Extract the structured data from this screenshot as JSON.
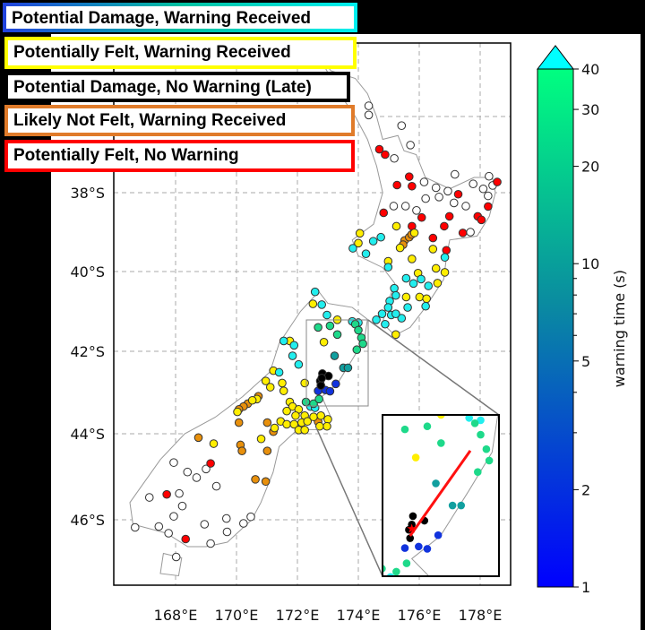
{
  "legend": [
    {
      "label": "Potential Damage, Warning Received",
      "border": "gradient"
    },
    {
      "label": "Potentially Felt, Warning Received",
      "border": "#ffff00"
    },
    {
      "label": "Potential Damage, No Warning (Late)",
      "border": "#000000"
    },
    {
      "label": "Likely Not Felt, Warning Received",
      "border": "#e07b2a"
    },
    {
      "label": "Potentially Felt, No Warning",
      "border": "#ff0000"
    }
  ],
  "map": {
    "lon_ticks": [
      "168°E",
      "170°E",
      "172°E",
      "174°E",
      "176°E",
      "178°E"
    ],
    "lat_ticks": [
      "38°S",
      "40°S",
      "42°S",
      "44°S",
      "46°S"
    ],
    "inset_rupture": [
      [
        173.82,
        -41.68
      ],
      [
        172.77,
        -42.8
      ]
    ],
    "inset_epicenter": [
      172.8,
      -42.7
    ],
    "groups": [
      {
        "category": "No Warning Needed",
        "fill": "#ffffff",
        "points": [
          [
            177.17,
            -37.52
          ],
          [
            178.29,
            -37.57
          ],
          [
            176.16,
            -37.72
          ],
          [
            176.55,
            -37.87
          ],
          [
            176.94,
            -37.96
          ],
          [
            177.77,
            -37.77
          ],
          [
            178.1,
            -37.9
          ],
          [
            178.41,
            -37.81
          ],
          [
            178.26,
            -38.08
          ],
          [
            176.21,
            -38.15
          ],
          [
            176.65,
            -38.11
          ],
          [
            177.14,
            -38.26
          ],
          [
            177.53,
            -38.34
          ],
          [
            175.16,
            -38.34
          ],
          [
            175.55,
            -38.34
          ],
          [
            175.91,
            -38.45
          ],
          [
            177.68,
            -39.0
          ],
          [
            174.34,
            -35.72
          ],
          [
            174.34,
            -35.96
          ],
          [
            175.42,
            -36.24
          ],
          [
            175.71,
            -36.75
          ],
          [
            175.18,
            -37.1
          ],
          [
            167.94,
            -44.67
          ],
          [
            168.39,
            -44.89
          ],
          [
            168.69,
            -45.02
          ],
          [
            169.0,
            -44.82
          ],
          [
            169.34,
            -45.22
          ],
          [
            168.12,
            -45.39
          ],
          [
            167.14,
            -45.48
          ],
          [
            168.22,
            -45.68
          ],
          [
            167.94,
            -45.92
          ],
          [
            166.67,
            -46.17
          ],
          [
            167.45,
            -46.15
          ],
          [
            167.77,
            -46.3
          ],
          [
            168.95,
            -46.1
          ],
          [
            169.67,
            -45.97
          ],
          [
            169.69,
            -46.27
          ],
          [
            170.23,
            -46.08
          ],
          [
            170.47,
            -45.93
          ],
          [
            169.15,
            -46.53
          ],
          [
            168.02,
            -46.83
          ]
        ]
      },
      {
        "category": "Potentially Felt, No Warning",
        "fill": "#ff0000",
        "points": [
          [
            175.67,
            -37.58
          ],
          [
            175.27,
            -37.8
          ],
          [
            175.76,
            -37.83
          ],
          [
            178.56,
            -37.72
          ],
          [
            177.28,
            -38.04
          ],
          [
            178.26,
            -38.35
          ],
          [
            174.83,
            -38.51
          ],
          [
            176.08,
            -38.63
          ],
          [
            176.99,
            -38.6
          ],
          [
            177.92,
            -38.6
          ],
          [
            178.04,
            -38.69
          ],
          [
            175.76,
            -38.85
          ],
          [
            176.82,
            -38.85
          ],
          [
            177.43,
            -39.02
          ],
          [
            176.45,
            -39.15
          ],
          [
            176.89,
            -39.46
          ],
          [
            174.69,
            -36.86
          ],
          [
            174.88,
            -37.0
          ],
          [
            169.15,
            -44.69
          ],
          [
            167.71,
            -45.41
          ],
          [
            168.33,
            -46.43
          ]
        ]
      },
      {
        "category": "Likely Not Felt, Warning Received",
        "fill": "#e8900c",
        "points": [
          [
            175.52,
            -39.21
          ],
          [
            175.67,
            -39.13
          ],
          [
            175.75,
            -39.06
          ],
          [
            175.47,
            -39.32
          ],
          [
            170.72,
            -43.09
          ],
          [
            170.37,
            -43.27
          ],
          [
            170.23,
            -43.34
          ],
          [
            170.08,
            -43.41
          ],
          [
            170.08,
            -43.73
          ],
          [
            171.01,
            -43.73
          ],
          [
            171.21,
            -43.95
          ],
          [
            168.75,
            -44.09
          ],
          [
            170.13,
            -44.26
          ],
          [
            170.18,
            -44.4
          ],
          [
            171.01,
            -44.4
          ],
          [
            170.62,
            -45.06
          ],
          [
            170.96,
            -45.11
          ],
          [
            172.68,
            -43.71
          ]
        ]
      },
      {
        "category": "Potentially Felt, Warning Received",
        "fill": "#ffee00",
        "points": [
          [
            174.05,
            -39.03
          ],
          [
            174.0,
            -39.28
          ],
          [
            175.25,
            -38.85
          ],
          [
            175.84,
            -39.02
          ],
          [
            175.37,
            -39.4
          ],
          [
            176.45,
            -39.43
          ],
          [
            175.76,
            -39.68
          ],
          [
            174.98,
            -39.74
          ],
          [
            175.96,
            -40.04
          ],
          [
            176.55,
            -39.92
          ],
          [
            176.84,
            -40.02
          ],
          [
            176.6,
            -40.29
          ],
          [
            175.57,
            -40.64
          ],
          [
            176.01,
            -40.64
          ],
          [
            176.24,
            -40.68
          ],
          [
            175.23,
            -41.58
          ],
          [
            172.51,
            -40.81
          ],
          [
            173.31,
            -41.21
          ],
          [
            172.87,
            -41.77
          ],
          [
            171.75,
            -41.74
          ],
          [
            171.21,
            -42.47
          ],
          [
            170.96,
            -42.72
          ],
          [
            171.5,
            -42.77
          ],
          [
            171.11,
            -42.87
          ],
          [
            171.55,
            -42.96
          ],
          [
            172.24,
            -42.77
          ],
          [
            171.75,
            -43.23
          ],
          [
            170.67,
            -43.16
          ],
          [
            170.52,
            -43.19
          ],
          [
            170.03,
            -43.47
          ],
          [
            170.81,
            -44.12
          ],
          [
            169.25,
            -44.23
          ],
          [
            171.84,
            -43.34
          ],
          [
            172.04,
            -43.41
          ],
          [
            171.65,
            -43.45
          ],
          [
            171.94,
            -43.56
          ],
          [
            172.24,
            -43.56
          ],
          [
            171.45,
            -43.7
          ],
          [
            171.65,
            -43.77
          ],
          [
            171.89,
            -43.77
          ],
          [
            172.14,
            -43.73
          ],
          [
            172.33,
            -43.7
          ],
          [
            172.53,
            -43.59
          ],
          [
            172.77,
            -43.56
          ],
          [
            173.0,
            -43.65
          ],
          [
            172.97,
            -43.82
          ],
          [
            172.04,
            -43.91
          ],
          [
            172.24,
            -43.91
          ],
          [
            172.73,
            -43.82
          ],
          [
            171.25,
            -43.86
          ]
        ]
      },
      {
        "category": "Warning time > 40 s",
        "fill": "#22eeee",
        "points": [
          [
            174.49,
            -39.23
          ],
          [
            174.74,
            -39.13
          ],
          [
            173.82,
            -39.41
          ],
          [
            174.25,
            -39.55
          ],
          [
            176.84,
            -39.64
          ],
          [
            174.98,
            -39.89
          ],
          [
            175.57,
            -40.17
          ],
          [
            175.81,
            -40.3
          ],
          [
            176.06,
            -40.19
          ],
          [
            176.3,
            -40.36
          ],
          [
            175.18,
            -40.42
          ],
          [
            175.23,
            -40.6
          ],
          [
            175.03,
            -40.74
          ],
          [
            175.62,
            -40.9
          ],
          [
            176.21,
            -40.87
          ],
          [
            174.98,
            -40.9
          ],
          [
            174.78,
            -41.06
          ],
          [
            175.08,
            -41.09
          ],
          [
            175.42,
            -41.17
          ],
          [
            174.59,
            -41.21
          ],
          [
            174.88,
            -41.32
          ],
          [
            175.23,
            -41.06
          ],
          [
            173.8,
            -41.25
          ],
          [
            174.0,
            -41.28
          ],
          [
            172.58,
            -40.51
          ],
          [
            172.8,
            -40.83
          ],
          [
            172.97,
            -41.09
          ],
          [
            171.55,
            -41.74
          ],
          [
            171.89,
            -41.85
          ],
          [
            171.84,
            -42.11
          ],
          [
            172.04,
            -42.32
          ],
          [
            171.4,
            -42.51
          ],
          [
            172.43,
            -43.34
          ],
          [
            172.58,
            -43.37
          ]
        ]
      },
      {
        "category": "Warning time ~30 s",
        "fill": "#1ed98a",
        "points": [
          [
            172.68,
            -41.4
          ],
          [
            173.07,
            -41.36
          ],
          [
            173.31,
            -41.58
          ],
          [
            173.9,
            -41.32
          ],
          [
            174.0,
            -41.47
          ],
          [
            174.1,
            -41.66
          ],
          [
            174.15,
            -41.81
          ],
          [
            173.95,
            -41.96
          ],
          [
            172.28,
            -43.23
          ],
          [
            172.53,
            -43.27
          ],
          [
            172.71,
            -43.16
          ]
        ]
      },
      {
        "category": "Warning time ~10 s",
        "fill": "#119f9f",
        "points": [
          [
            173.22,
            -42.11
          ],
          [
            173.51,
            -42.4
          ],
          [
            173.66,
            -42.4
          ]
        ]
      },
      {
        "category": "Warning time ~2 s",
        "fill": "#1133dd",
        "points": [
          [
            173.26,
            -42.79
          ],
          [
            172.68,
            -42.96
          ],
          [
            172.92,
            -42.94
          ],
          [
            173.07,
            -42.97
          ]
        ]
      },
      {
        "category": "Potential Damage, No Warning (Late)",
        "fill": "#000000",
        "points": [
          [
            172.82,
            -42.54
          ],
          [
            173.02,
            -42.6
          ],
          [
            172.75,
            -42.72
          ],
          [
            172.77,
            -42.83
          ],
          [
            172.8,
            -42.65
          ]
        ]
      }
    ]
  },
  "colorbar": {
    "label": "warning time (s)",
    "ticks": [
      "1",
      "2",
      "5",
      "10",
      "20",
      "30",
      "40"
    ],
    "tick_values": [
      1,
      2,
      5,
      10,
      20,
      30,
      40
    ],
    "minor_values": [
      3,
      4,
      6,
      7,
      8,
      9
    ],
    "min": 1,
    "max": 40,
    "colors": [
      "#0000ff",
      "#00ff80"
    ],
    "extend_color": "#00ffff"
  }
}
